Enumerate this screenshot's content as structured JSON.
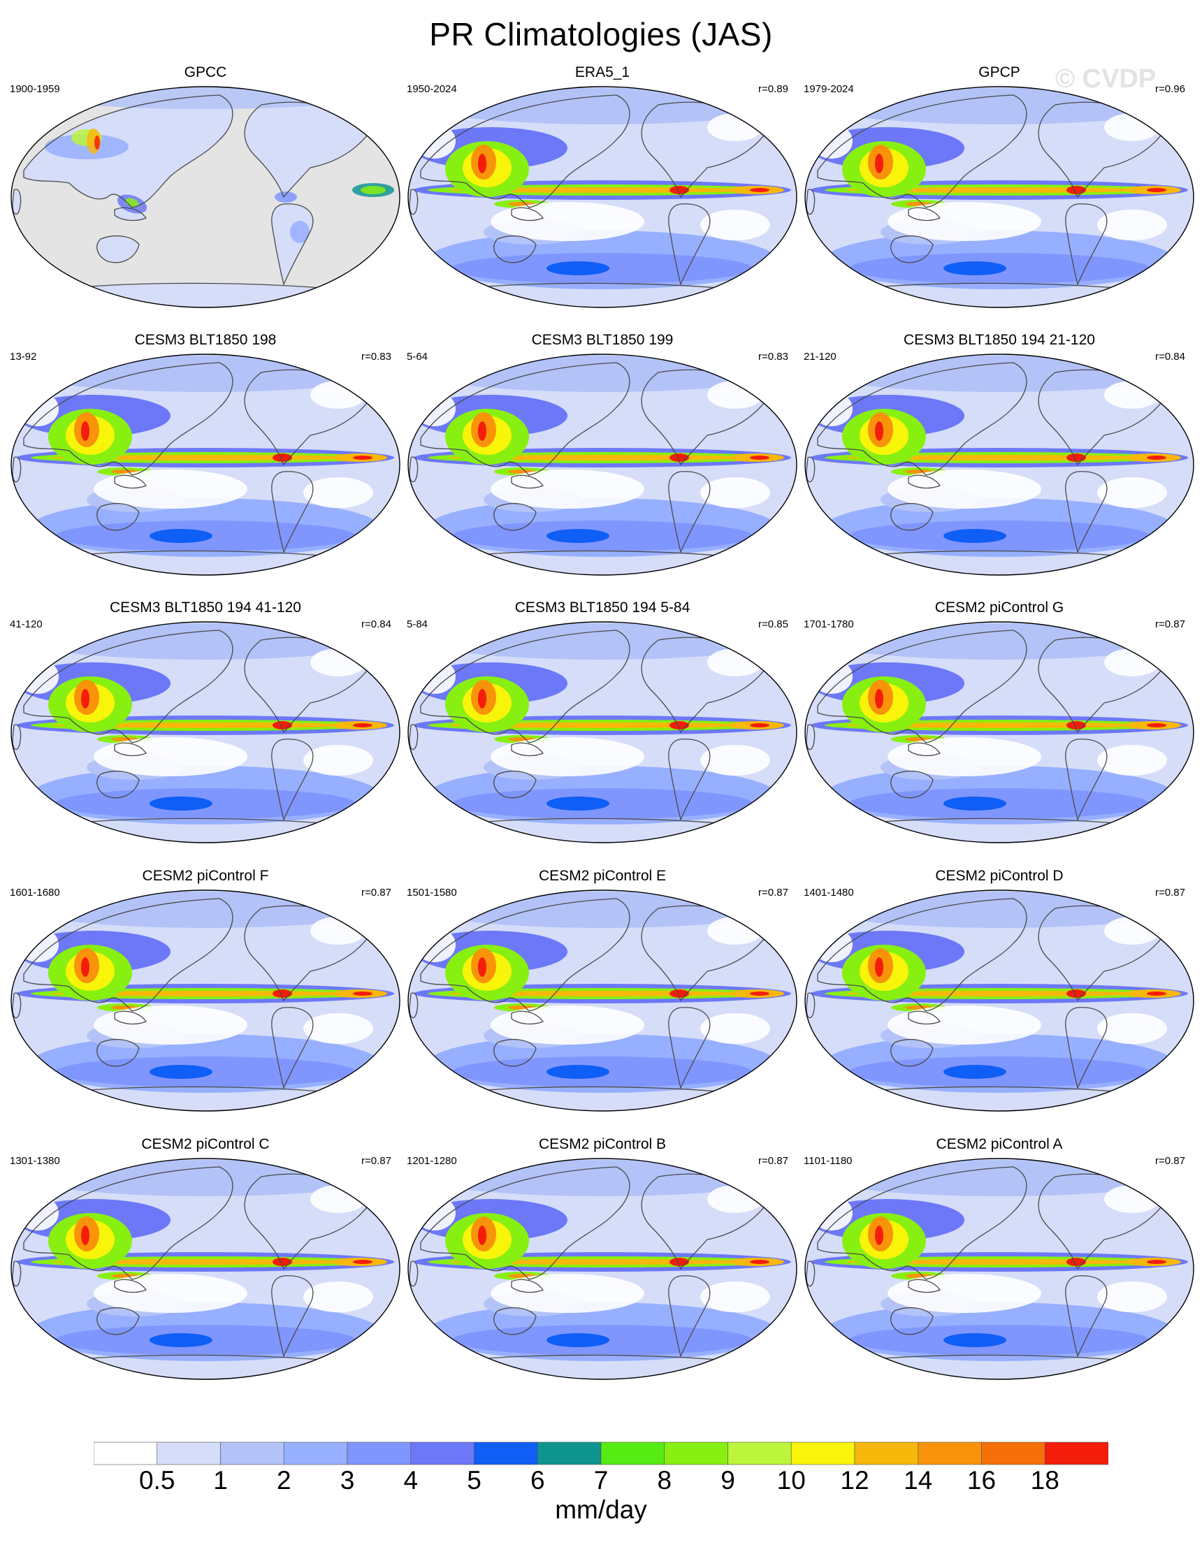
{
  "figure": {
    "title": "PR Climatologies (JAS)",
    "watermark": "© CVDP"
  },
  "panels": [
    {
      "title": "GPCC",
      "period": "1900-1959",
      "r": "",
      "land_only": true
    },
    {
      "title": "ERA5_1",
      "period": "1950-2024",
      "r": "r=0.89",
      "land_only": false
    },
    {
      "title": "GPCP",
      "period": "1979-2024",
      "r": "r=0.96",
      "land_only": false
    },
    {
      "title": "CESM3 BLT1850 198",
      "period": "13-92",
      "r": "r=0.83",
      "land_only": false
    },
    {
      "title": "CESM3 BLT1850 199",
      "period": "5-64",
      "r": "r=0.83",
      "land_only": false
    },
    {
      "title": "CESM3 BLT1850 194 21-120",
      "period": "21-120",
      "r": "r=0.84",
      "land_only": false
    },
    {
      "title": "CESM3 BLT1850 194 41-120",
      "period": "41-120",
      "r": "r=0.84",
      "land_only": false
    },
    {
      "title": "CESM3 BLT1850 194 5-84",
      "period": "5-84",
      "r": "r=0.85",
      "land_only": false
    },
    {
      "title": "CESM2 piControl G",
      "period": "1701-1780",
      "r": "r=0.87",
      "land_only": false
    },
    {
      "title": "CESM2 piControl F",
      "period": "1601-1680",
      "r": "r=0.87",
      "land_only": false
    },
    {
      "title": "CESM2 piControl E",
      "period": "1501-1580",
      "r": "r=0.87",
      "land_only": false
    },
    {
      "title": "CESM2 piControl D",
      "period": "1401-1480",
      "r": "r=0.87",
      "land_only": false
    },
    {
      "title": "CESM2 piControl C",
      "period": "1301-1380",
      "r": "r=0.87",
      "land_only": false
    },
    {
      "title": "CESM2 piControl B",
      "period": "1201-1280",
      "r": "r=0.87",
      "land_only": false
    },
    {
      "title": "CESM2 piControl A",
      "period": "1101-1180",
      "r": "r=0.87",
      "land_only": false
    }
  ],
  "colorbar": {
    "units": "mm/day",
    "labels": [
      "0.5",
      "1",
      "2",
      "3",
      "4",
      "5",
      "6",
      "7",
      "8",
      "9",
      "10",
      "12",
      "14",
      "16",
      "18"
    ],
    "colors": [
      "#ffffff",
      "#d5ddf9",
      "#b3c3f8",
      "#97afff",
      "#8096ff",
      "#6c78f8",
      "#0f5ef5",
      "#0f958f",
      "#55eb13",
      "#88f010",
      "#bcf53b",
      "#f8f40a",
      "#f8b80a",
      "#f8930a",
      "#f6700a",
      "#f31d0a"
    ]
  },
  "map_colors": {
    "ocean_missing": "#e4e4e4",
    "coastline": "#4a4a4a",
    "border": "#000000"
  }
}
